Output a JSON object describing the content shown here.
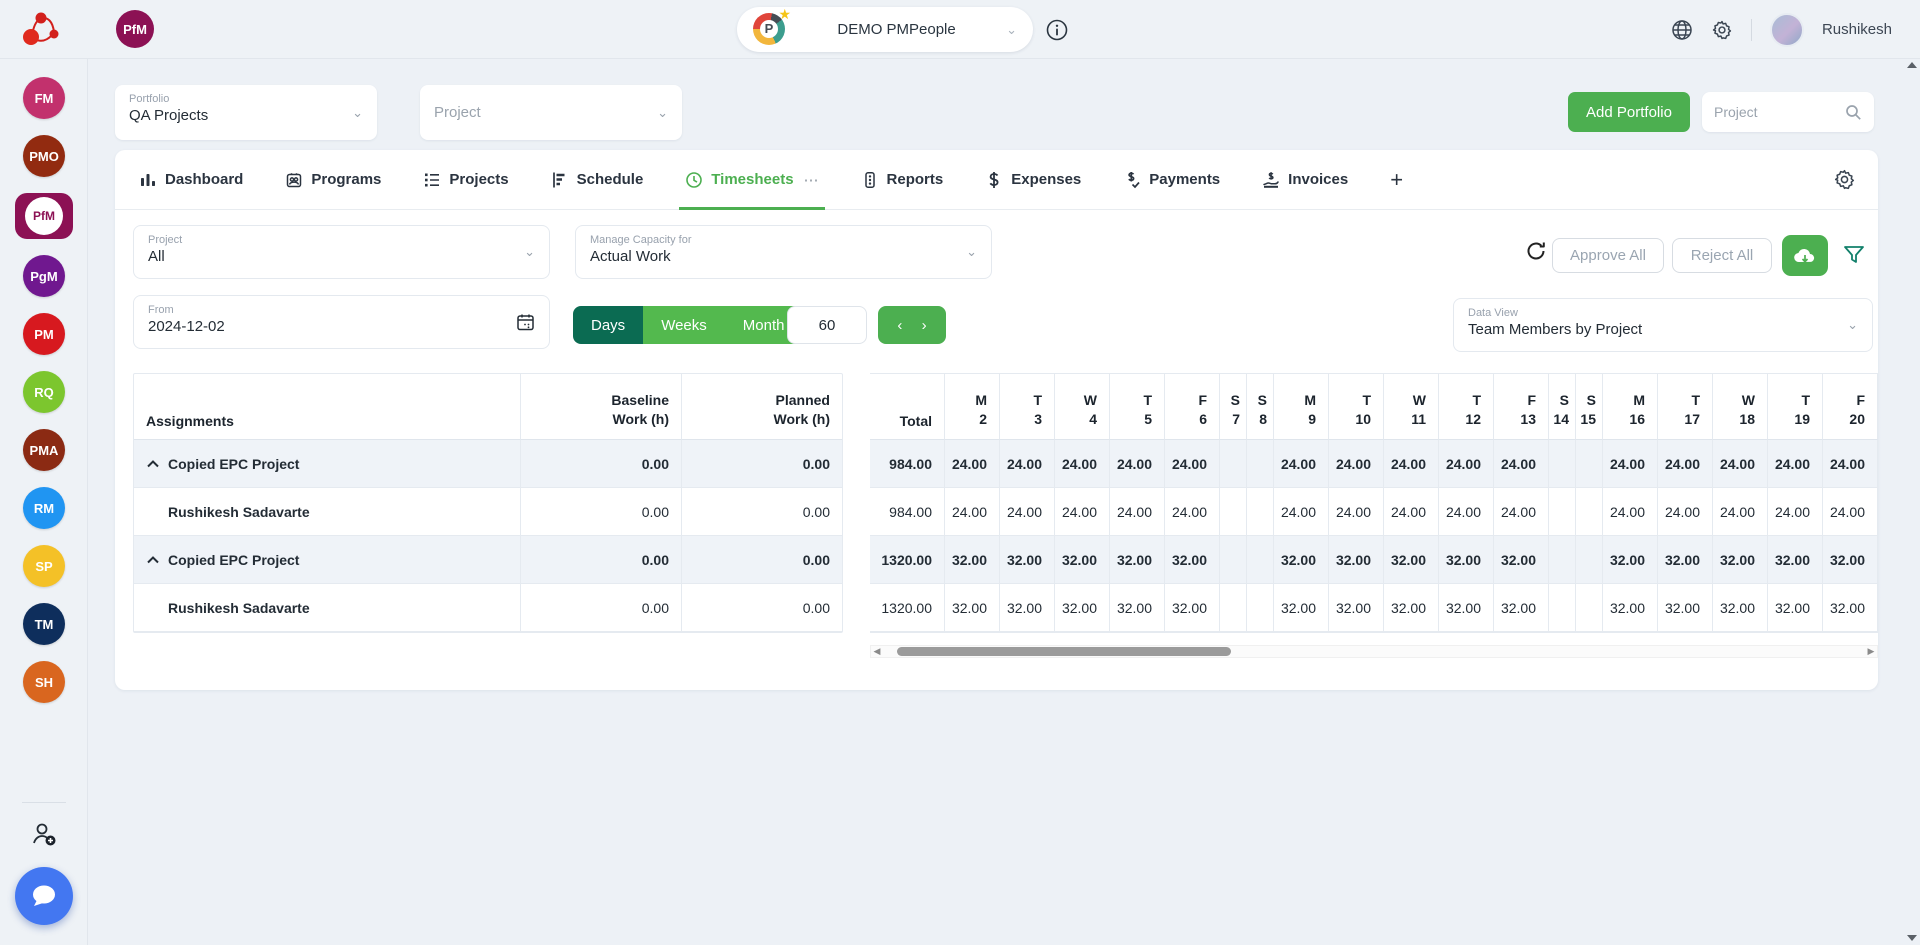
{
  "topbar": {
    "brand_badge": "PfM",
    "org_selector_value": "DEMO PMPeople",
    "user_name": "Rushikesh"
  },
  "sidebar": {
    "roles": [
      {
        "label": "FM",
        "color": "#c2316d",
        "active": false
      },
      {
        "label": "PMO",
        "color": "#922b10",
        "active": false
      },
      {
        "label": "PfM",
        "color": "#8c1154",
        "active": true
      },
      {
        "label": "PgM",
        "color": "#70188f",
        "active": false
      },
      {
        "label": "PM",
        "color": "#d7191f",
        "active": false
      },
      {
        "label": "RQ",
        "color": "#7cc62e",
        "active": false
      },
      {
        "label": "PMA",
        "color": "#8b2a13",
        "active": false
      },
      {
        "label": "RM",
        "color": "#2095f2",
        "active": false
      },
      {
        "label": "SP",
        "color": "#f4c127",
        "active": false
      },
      {
        "label": "TM",
        "color": "#0e2e5c",
        "active": false
      },
      {
        "label": "SH",
        "color": "#d9661f",
        "active": false
      }
    ]
  },
  "portfolio_bar": {
    "portfolio_label": "Portfolio",
    "portfolio_value": "QA Projects",
    "project_placeholder": "Project",
    "add_portfolio_label": "Add Portfolio",
    "search_placeholder": "Project"
  },
  "tabs": [
    {
      "id": "dashboard",
      "label": "Dashboard",
      "icon": "bar-chart-icon",
      "active": false
    },
    {
      "id": "programs",
      "label": "Programs",
      "icon": "programs-icon",
      "active": false
    },
    {
      "id": "projects",
      "label": "Projects",
      "icon": "list-icon",
      "active": false
    },
    {
      "id": "schedule",
      "label": "Schedule",
      "icon": "gantt-icon",
      "active": false
    },
    {
      "id": "timesheets",
      "label": "Timesheets",
      "icon": "clock-icon",
      "active": true,
      "overflow": "⋯"
    },
    {
      "id": "reports",
      "label": "Reports",
      "icon": "report-icon",
      "active": false
    },
    {
      "id": "expenses",
      "label": "Expenses",
      "icon": "dollar-icon",
      "active": false
    },
    {
      "id": "payments",
      "label": "Payments",
      "icon": "payment-icon",
      "active": false
    },
    {
      "id": "invoices",
      "label": "Invoices",
      "icon": "invoice-icon",
      "active": false
    },
    {
      "id": "add-tab",
      "label": "+",
      "icon": null,
      "active": false
    }
  ],
  "filters": {
    "project_label": "Project",
    "project_value": "All",
    "capacity_label": "Manage Capacity for",
    "capacity_value": "Actual Work",
    "from_label": "From",
    "from_value": "2024-12-02",
    "period_options": [
      "Days",
      "Weeks",
      "Month"
    ],
    "period_active": "Days",
    "range_value": "60",
    "prev_arrow": "‹",
    "next_arrow": "›"
  },
  "toolbar": {
    "approve_all_label": "Approve All",
    "reject_all_label": "Reject All"
  },
  "data_view": {
    "label": "Data View",
    "value": "Team Members by Project"
  },
  "colors": {
    "accent_green": "#4caf50",
    "dark_teal": "#0b6b52",
    "active_role": "#8c1154",
    "chat_fab_blue": "#4377f1"
  },
  "timesheet_table": {
    "assignments_header": "Assignments",
    "baseline_header": {
      "line1": "Baseline",
      "line2": "Work (h)"
    },
    "planned_header": {
      "line1": "Planned",
      "line2": "Work (h)"
    },
    "total_header": "Total",
    "day_columns": [
      {
        "day": "M",
        "date": "2",
        "weekend": false
      },
      {
        "day": "T",
        "date": "3",
        "weekend": false
      },
      {
        "day": "W",
        "date": "4",
        "weekend": false
      },
      {
        "day": "T",
        "date": "5",
        "weekend": false
      },
      {
        "day": "F",
        "date": "6",
        "weekend": false
      },
      {
        "day": "S",
        "date": "7",
        "weekend": true
      },
      {
        "day": "S",
        "date": "8",
        "weekend": true
      },
      {
        "day": "M",
        "date": "9",
        "weekend": false
      },
      {
        "day": "T",
        "date": "10",
        "weekend": false
      },
      {
        "day": "W",
        "date": "11",
        "weekend": false
      },
      {
        "day": "T",
        "date": "12",
        "weekend": false
      },
      {
        "day": "F",
        "date": "13",
        "weekend": false
      },
      {
        "day": "S",
        "date": "14",
        "weekend": true
      },
      {
        "day": "S",
        "date": "15",
        "weekend": true
      },
      {
        "day": "M",
        "date": "16",
        "weekend": false
      },
      {
        "day": "T",
        "date": "17",
        "weekend": false
      },
      {
        "day": "W",
        "date": "18",
        "weekend": false
      },
      {
        "day": "T",
        "date": "19",
        "weekend": false
      },
      {
        "day": "F",
        "date": "20",
        "weekend": false
      }
    ],
    "rows": [
      {
        "name": "Copied EPC Project",
        "type": "project",
        "baseline": "0.00",
        "planned": "0.00",
        "total": "984.00",
        "values": [
          "24.00",
          "24.00",
          "24.00",
          "24.00",
          "24.00",
          "",
          "",
          "24.00",
          "24.00",
          "24.00",
          "24.00",
          "24.00",
          "",
          "",
          "24.00",
          "24.00",
          "24.00",
          "24.00",
          "24.00"
        ]
      },
      {
        "name": "Rushikesh Sadavarte",
        "type": "member",
        "baseline": "0.00",
        "planned": "0.00",
        "total": "984.00",
        "values": [
          "24.00",
          "24.00",
          "24.00",
          "24.00",
          "24.00",
          "",
          "",
          "24.00",
          "24.00",
          "24.00",
          "24.00",
          "24.00",
          "",
          "",
          "24.00",
          "24.00",
          "24.00",
          "24.00",
          "24.00"
        ]
      },
      {
        "name": "Copied EPC Project",
        "type": "project",
        "baseline": "0.00",
        "planned": "0.00",
        "total": "1320.00",
        "values": [
          "32.00",
          "32.00",
          "32.00",
          "32.00",
          "32.00",
          "",
          "",
          "32.00",
          "32.00",
          "32.00",
          "32.00",
          "32.00",
          "",
          "",
          "32.00",
          "32.00",
          "32.00",
          "32.00",
          "32.00"
        ]
      },
      {
        "name": "Rushikesh Sadavarte",
        "type": "member",
        "baseline": "0.00",
        "planned": "0.00",
        "total": "1320.00",
        "values": [
          "32.00",
          "32.00",
          "32.00",
          "32.00",
          "32.00",
          "",
          "",
          "32.00",
          "32.00",
          "32.00",
          "32.00",
          "32.00",
          "",
          "",
          "32.00",
          "32.00",
          "32.00",
          "32.00",
          "32.00"
        ]
      }
    ]
  }
}
